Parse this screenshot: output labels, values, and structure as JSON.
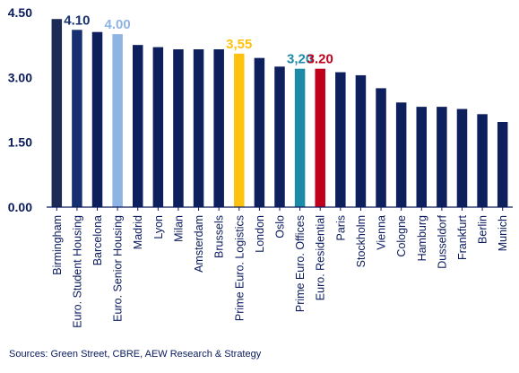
{
  "chart_data": {
    "type": "bar",
    "categories": [
      "Birmingham",
      "Euro. Student Housing",
      "Barcelona",
      "Euro. Senior Housing",
      "Madrid",
      "Lyon",
      "Milan",
      "Amsterdam",
      "Brussels",
      "Prime Euro. Logistics",
      "London",
      "Oslo",
      "Prime Euro. Offices",
      "Euro. Residential",
      "Paris",
      "Stockholm",
      "Vienna",
      "Cologne",
      "Hamburg",
      "Dusseldorf",
      "Frankfurt",
      "Berlin",
      "Munich"
    ],
    "values": [
      4.35,
      4.1,
      4.05,
      4.0,
      3.75,
      3.7,
      3.65,
      3.65,
      3.65,
      3.55,
      3.45,
      3.25,
      3.2,
      3.2,
      3.12,
      3.05,
      2.75,
      2.42,
      2.32,
      2.32,
      2.27,
      2.15,
      1.97
    ],
    "bar_colors": [
      "#1c2a55",
      "#17306f",
      "#0d1f5c",
      "#8eb4e3",
      "#0d1f5c",
      "#0d1f5c",
      "#0d1f5c",
      "#0d1f5c",
      "#0d1f5c",
      "#ffc20e",
      "#0d1f5c",
      "#0d1f5c",
      "#1d8aa8",
      "#c0001b",
      "#0d1f5c",
      "#0d1f5c",
      "#0d1f5c",
      "#0d1f5c",
      "#0d1f5c",
      "#0d1f5c",
      "#0d1f5c",
      "#0d1f5c",
      "#0d1f5c"
    ],
    "data_labels": [
      {
        "index": 1,
        "text": "4.10",
        "color": "#17306f"
      },
      {
        "index": 3,
        "text": "4.00",
        "color": "#8eb4e3"
      },
      {
        "index": 9,
        "text": "3,55",
        "color": "#ffc20e"
      },
      {
        "index": 12,
        "text": "3,20",
        "color": "#1d8aa8"
      },
      {
        "index": 13,
        "text": "3.20",
        "color": "#c0001b"
      }
    ],
    "yticks": [
      "0.00",
      "1.50",
      "3.00",
      "4.50"
    ],
    "ytick_values": [
      0,
      1.5,
      3.0,
      4.5
    ],
    "ylim": [
      0,
      4.5
    ],
    "grid": false,
    "axis_color": "#0a1a5c"
  },
  "source": "Sources: Green Street, CBRE, AEW Research & Strategy"
}
